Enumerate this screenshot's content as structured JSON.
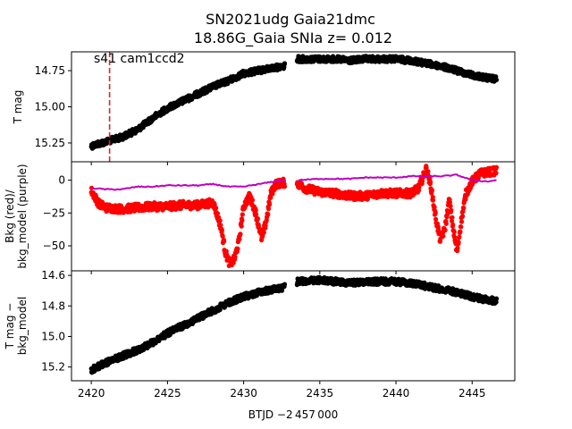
{
  "title_line1": "SN2021udg  Gaia21dmc",
  "title_line2": "18.86G_Gaia SNIa z= 0.012",
  "annotation": "s41 cam1ccd2",
  "xlabel": "BTJD −2 457 000",
  "colors": {
    "black": "#000000",
    "red": "#ff0000",
    "purple": "#bf00bf",
    "marker_line": "#d62728"
  },
  "chart_data": [
    {
      "type": "scatter",
      "panel": "top",
      "ylabel": "T mag",
      "y_inverted": true,
      "xlim": [
        2418.7,
        2447.8
      ],
      "ylim": [
        15.38,
        14.62
      ],
      "yticks": [
        14.75,
        15.0,
        15.25
      ],
      "ytick_labels": [
        "14.75",
        "15.00",
        "15.25"
      ],
      "vline_x": 2421.2,
      "series": [
        {
          "color": "#000000",
          "x": [
            2420,
            2421,
            2422,
            2423,
            2424,
            2425,
            2426,
            2427,
            2428,
            2429,
            2430,
            2431,
            2432,
            2432.6,
            2433.6,
            2435,
            2436,
            2437,
            2438,
            2439,
            2440,
            2441,
            2442,
            2443,
            2444,
            2445,
            2446,
            2446.6
          ],
          "y": [
            15.27,
            15.24,
            15.21,
            15.16,
            15.08,
            15.01,
            14.96,
            14.91,
            14.86,
            14.82,
            14.77,
            14.75,
            14.73,
            14.72,
            14.67,
            14.67,
            14.67,
            14.68,
            14.67,
            14.67,
            14.67,
            14.68,
            14.7,
            14.72,
            14.75,
            14.78,
            14.8,
            14.81
          ],
          "spread": 0.02
        }
      ]
    },
    {
      "type": "scatter",
      "panel": "middle",
      "ylabel": "Bkg (red)/\nbkg_model (purple)",
      "ylabel_lines": [
        "Bkg (red)/",
        "bkg_model (purple)"
      ],
      "xlim": [
        2418.7,
        2447.8
      ],
      "ylim": [
        -69,
        14
      ],
      "yticks": [
        0,
        -25,
        -50
      ],
      "ytick_labels": [
        "0",
        "−25",
        "−50"
      ],
      "series": [
        {
          "name": "bkg",
          "color": "#ff0000",
          "x": [
            2420,
            2420.5,
            2421,
            2422,
            2423,
            2424,
            2425,
            2426,
            2427,
            2428,
            2428.5,
            2428.8,
            2429.1,
            2429.4,
            2429.7,
            2430,
            2430.4,
            2430.8,
            2431.2,
            2431.5,
            2431.8,
            2432.1,
            2432.6,
            2433.6,
            2434,
            2435,
            2436,
            2437,
            2438,
            2439,
            2440,
            2441,
            2441.5,
            2442,
            2442.3,
            2442.6,
            2442.9,
            2443.2,
            2443.5,
            2443.8,
            2444,
            2444.3,
            2444.6,
            2445,
            2445.5,
            2446,
            2446.6
          ],
          "y": [
            -8,
            -18,
            -21,
            -22,
            -21,
            -20,
            -20,
            -19,
            -19,
            -17,
            -35,
            -55,
            -64,
            -60,
            -46,
            -20,
            -12,
            -25,
            -45,
            -30,
            -10,
            -3,
            -2,
            -3,
            -6,
            -9,
            -10,
            -12,
            -12,
            -10,
            -10,
            -10,
            -6,
            9,
            -5,
            -28,
            -45,
            -38,
            -15,
            -40,
            -55,
            -30,
            -10,
            -1,
            5,
            6,
            7
          ],
          "spread": 3
        },
        {
          "name": "bkg_model",
          "color": "#bf00bf",
          "x": [
            2420,
            2421,
            2422,
            2423,
            2424,
            2425,
            2426,
            2427,
            2428,
            2429,
            2430,
            2431,
            2432,
            2432.6,
            2433.6,
            2435,
            2436,
            2437,
            2438,
            2439,
            2440,
            2441,
            2442,
            2443,
            2444,
            2445,
            2446,
            2446.6
          ],
          "y": [
            -6,
            -7,
            -7,
            -5,
            -5,
            -4,
            -4,
            -4,
            -3,
            -5,
            -5,
            -3,
            -1,
            0,
            0,
            1,
            1,
            1,
            2,
            2,
            2,
            3,
            3,
            3,
            4,
            0,
            -1,
            0
          ],
          "spread": 0.8
        }
      ]
    },
    {
      "type": "scatter",
      "panel": "bottom",
      "ylabel": "T mag −\nbkg_model",
      "ylabel_lines": [
        "T mag −",
        "bkg_model"
      ],
      "y_inverted": true,
      "xlim": [
        2418.7,
        2447.8
      ],
      "ylim": [
        15.29,
        14.57
      ],
      "yticks": [
        14.6,
        14.8,
        15.0,
        15.2
      ],
      "ytick_labels": [
        "14.6",
        "14.8",
        "15.0",
        "15.2"
      ],
      "xticks": [
        2420,
        2425,
        2430,
        2435,
        2440,
        2445
      ],
      "xtick_labels": [
        "2420",
        "2425",
        "2430",
        "2435",
        "2440",
        "2445"
      ],
      "series": [
        {
          "color": "#000000",
          "x": [
            2420,
            2421,
            2422,
            2423,
            2424,
            2425,
            2426,
            2427,
            2428,
            2429,
            2430,
            2431,
            2432,
            2432.6,
            2433.6,
            2435,
            2436,
            2437,
            2438,
            2439,
            2440,
            2441,
            2442,
            2443,
            2444,
            2445,
            2446,
            2446.6
          ],
          "y": [
            15.22,
            15.17,
            15.13,
            15.09,
            15.04,
            14.98,
            14.93,
            14.88,
            14.83,
            14.78,
            14.74,
            14.71,
            14.69,
            14.68,
            14.64,
            14.63,
            14.64,
            14.65,
            14.64,
            14.64,
            14.64,
            14.65,
            14.67,
            14.69,
            14.71,
            14.74,
            14.76,
            14.77
          ],
          "spread": 0.02
        }
      ]
    }
  ]
}
